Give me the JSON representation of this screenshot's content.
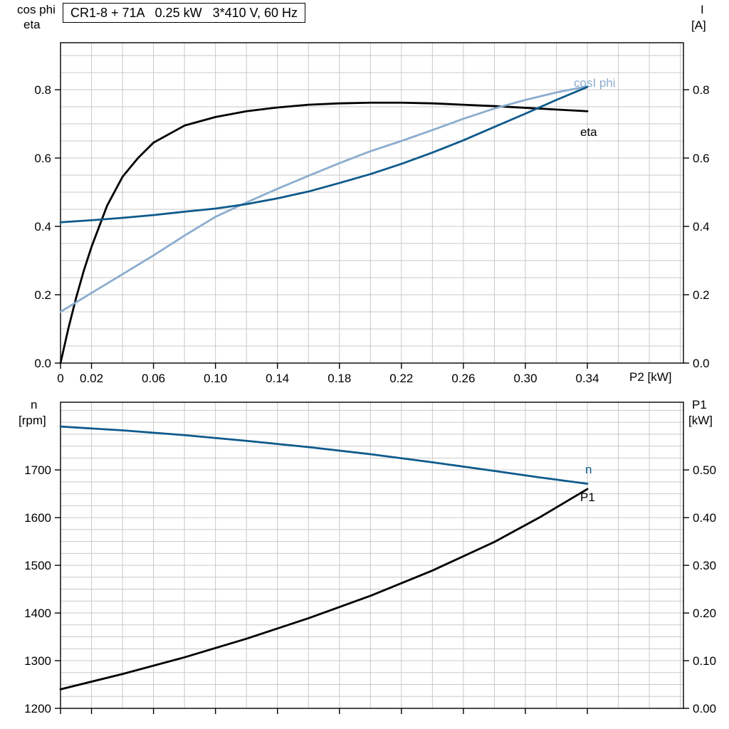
{
  "title_box": {
    "text": "CR1-8 + 71A   0.25 kW   3*410 V, 60 Hz"
  },
  "colors": {
    "black": "#000000",
    "dark_blue": "#0e5a8c",
    "light_blue": "#8badce",
    "grid": "#c9c9c9",
    "axis": "#000000"
  },
  "axis_labels": {
    "top_left_line1": "cos phi",
    "top_left_line2": "eta",
    "top_right_line1": "I",
    "top_right_line2": "[A]",
    "x_label": "P2 [kW]",
    "bottom_left_line1": "n",
    "bottom_left_line2": "[rpm]",
    "bottom_right_line1": "P1",
    "bottom_right_line2": "[kW]"
  },
  "curve_labels": {
    "cos_phi": "cosI phi",
    "eta": "eta",
    "n": "n",
    "p1": "P1"
  },
  "chart_data": [
    {
      "type": "line",
      "panel": "top",
      "title": "CR1-8 + 71A   0.25 kW   3*410 V, 60 Hz",
      "x_label": "P2 [kW]",
      "y_left_label": "cos phi / eta",
      "y_right_label": "I [A]",
      "xlim": [
        0,
        0.402
      ],
      "ylim_left": [
        0,
        0.9375
      ],
      "ylim_right": [
        0,
        0.9375
      ],
      "x_grid_step": 0.02,
      "y_grid_step": 0.05,
      "grid": true,
      "show_x_tick_labels": true,
      "x_tick_values": [
        0,
        0.02,
        0.06,
        0.1,
        0.14,
        0.18,
        0.22,
        0.26,
        0.3,
        0.34
      ],
      "x_tick_labels": [
        "0",
        "0.02",
        "0.06",
        "0.10",
        "0.14",
        "0.18",
        "0.22",
        "0.26",
        "0.30",
        "0.34"
      ],
      "y_tick_values_left": [
        0,
        0.2,
        0.4,
        0.6,
        0.8
      ],
      "y_tick_labels_left": [
        "0.0",
        "0.2",
        "0.4",
        "0.6",
        "0.8"
      ],
      "y_tick_values_right": [
        0,
        0.2,
        0.4,
        0.6,
        0.8
      ],
      "y_tick_labels_right": [
        "0.0",
        "0.2",
        "0.4",
        "0.6",
        "0.8"
      ],
      "series": [
        {
          "name": "eta",
          "label": "eta",
          "color": "black",
          "axis": "left",
          "x": [
            0,
            0.005,
            0.01,
            0.015,
            0.02,
            0.03,
            0.04,
            0.05,
            0.06,
            0.08,
            0.1,
            0.12,
            0.14,
            0.16,
            0.18,
            0.2,
            0.22,
            0.24,
            0.26,
            0.28,
            0.3,
            0.32,
            0.34
          ],
          "y": [
            0,
            0.1,
            0.19,
            0.27,
            0.34,
            0.46,
            0.545,
            0.6,
            0.645,
            0.695,
            0.72,
            0.737,
            0.748,
            0.756,
            0.76,
            0.762,
            0.762,
            0.76,
            0.756,
            0.752,
            0.747,
            0.742,
            0.737
          ]
        },
        {
          "name": "cos phi",
          "label": "cosI phi",
          "color": "light_blue",
          "axis": "left",
          "x": [
            0,
            0.02,
            0.04,
            0.06,
            0.08,
            0.1,
            0.12,
            0.14,
            0.16,
            0.18,
            0.2,
            0.22,
            0.24,
            0.26,
            0.28,
            0.3,
            0.32,
            0.34
          ],
          "y": [
            0.15,
            0.205,
            0.26,
            0.315,
            0.373,
            0.428,
            0.47,
            0.51,
            0.548,
            0.585,
            0.62,
            0.65,
            0.682,
            0.715,
            0.745,
            0.77,
            0.792,
            0.81
          ]
        },
        {
          "name": "I",
          "label": "I",
          "color": "dark_blue",
          "axis": "left",
          "x": [
            0,
            0.02,
            0.04,
            0.06,
            0.08,
            0.1,
            0.12,
            0.14,
            0.16,
            0.18,
            0.2,
            0.22,
            0.24,
            0.26,
            0.28,
            0.3,
            0.32,
            0.34
          ],
          "y": [
            0.412,
            0.418,
            0.425,
            0.433,
            0.443,
            0.452,
            0.465,
            0.482,
            0.502,
            0.527,
            0.553,
            0.583,
            0.616,
            0.652,
            0.691,
            0.73,
            0.77,
            0.808
          ]
        }
      ]
    },
    {
      "type": "line",
      "panel": "bottom",
      "y_left_label": "n [rpm]",
      "y_right_label": "P1 [kW]",
      "xlim": [
        0,
        0.402
      ],
      "ylim_left": [
        1200,
        1842
      ],
      "ylim_right": [
        0,
        0.642
      ],
      "x_grid_step": 0.02,
      "y_grid_step": 25,
      "grid": true,
      "show_x_tick_labels": false,
      "x_tick_values": [
        0,
        0.02,
        0.06,
        0.1,
        0.14,
        0.18,
        0.22,
        0.26,
        0.3,
        0.34
      ],
      "x_tick_labels": [
        "0",
        "0.02",
        "0.06",
        "0.10",
        "0.14",
        "0.18",
        "0.22",
        "0.26",
        "0.30",
        "0.34"
      ],
      "y_tick_values_left": [
        1200,
        1300,
        1400,
        1500,
        1600,
        1700
      ],
      "y_tick_labels_left": [
        "1200",
        "1300",
        "1400",
        "1500",
        "1600",
        "1700"
      ],
      "y_tick_values_right": [
        0,
        0.1,
        0.2,
        0.3,
        0.4,
        0.5
      ],
      "y_tick_labels_right": [
        "0.00",
        "0.10",
        "0.20",
        "0.30",
        "0.40",
        "0.50"
      ],
      "series": [
        {
          "name": "n",
          "label": "n",
          "color": "dark_blue",
          "axis": "left",
          "x": [
            0,
            0.04,
            0.08,
            0.12,
            0.16,
            0.2,
            0.24,
            0.28,
            0.31,
            0.34
          ],
          "y": [
            1791,
            1783,
            1773,
            1761,
            1748,
            1733,
            1716,
            1698,
            1684,
            1671
          ]
        },
        {
          "name": "P1",
          "label": "P1",
          "color": "black",
          "axis": "right",
          "x": [
            0,
            0.04,
            0.08,
            0.12,
            0.16,
            0.2,
            0.24,
            0.28,
            0.31,
            0.34
          ],
          "y": [
            0.04,
            0.072,
            0.107,
            0.146,
            0.189,
            0.236,
            0.289,
            0.349,
            0.402,
            0.46
          ]
        }
      ]
    }
  ]
}
